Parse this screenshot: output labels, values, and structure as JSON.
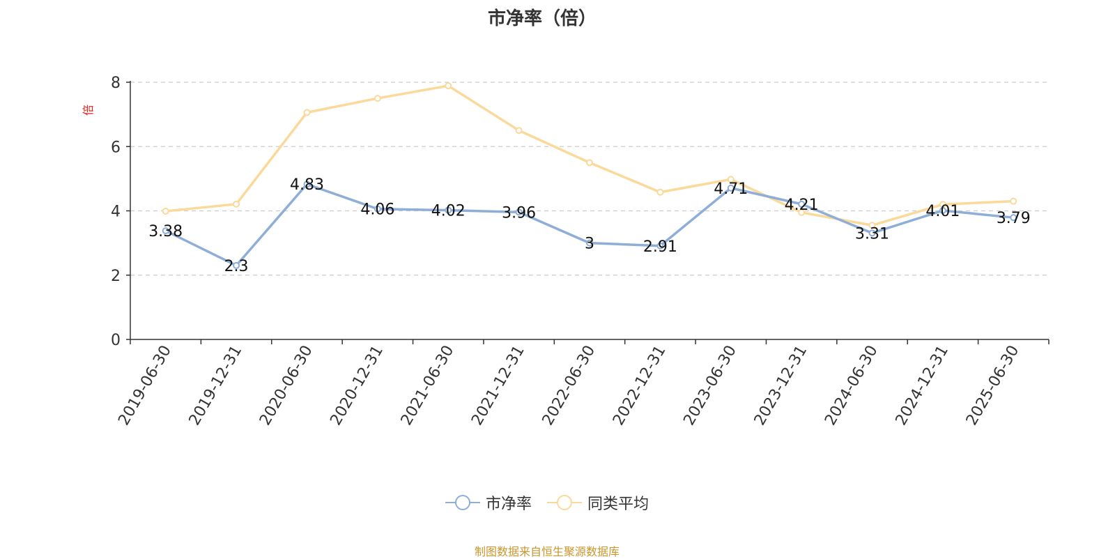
{
  "chart_data": {
    "type": "line",
    "title": "市净率（倍）",
    "ylabel": "倍",
    "ylim": [
      0,
      8
    ],
    "yticks": [
      0,
      2,
      4,
      6,
      8
    ],
    "grid": true,
    "legend_position": "bottom",
    "categories": [
      "2019-06-30",
      "2019-12-31",
      "2020-06-30",
      "2020-12-31",
      "2021-06-30",
      "2021-12-31",
      "2022-06-30",
      "2022-12-31",
      "2023-06-30",
      "2023-12-31",
      "2024-06-30",
      "2024-12-31",
      "2025-06-30"
    ],
    "series": [
      {
        "name": "市净率",
        "color": "#8eaed8",
        "values": [
          3.38,
          2.3,
          4.83,
          4.06,
          4.02,
          3.96,
          3,
          2.91,
          4.71,
          4.21,
          3.31,
          4.01,
          3.79
        ],
        "labels": [
          "3.38",
          "2.3",
          "4.83",
          "4.06",
          "4.02",
          "3.96",
          "3",
          "2.91",
          "4.71",
          "4.21",
          "3.31",
          "4.01",
          "3.79"
        ]
      },
      {
        "name": "同类平均",
        "color": "#fad99a",
        "values": [
          3.99,
          4.21,
          7.06,
          7.5,
          7.89,
          6.5,
          5.5,
          4.58,
          4.98,
          3.95,
          3.55,
          4.2,
          4.3
        ]
      }
    ]
  },
  "legend": {
    "item1": "市净率",
    "item2": "同类平均"
  },
  "source_note": "制图数据来自恒生聚源数据库"
}
